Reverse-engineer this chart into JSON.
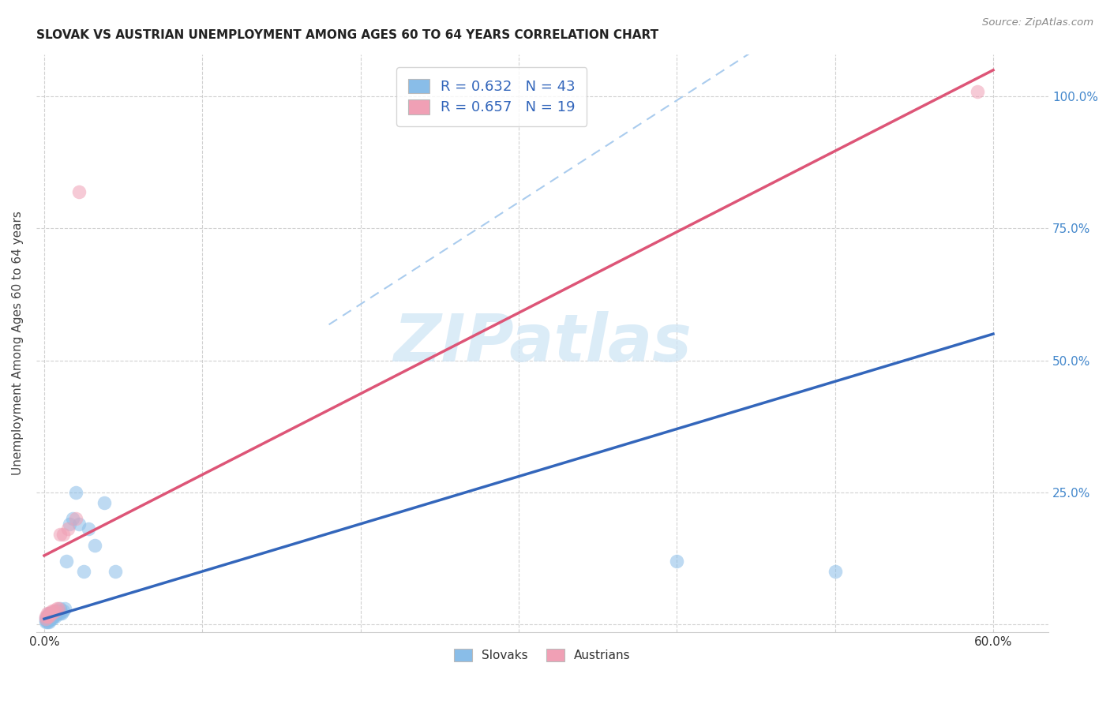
{
  "title": "SLOVAK VS AUSTRIAN UNEMPLOYMENT AMONG AGES 60 TO 64 YEARS CORRELATION CHART",
  "source": "Source: ZipAtlas.com",
  "ylabel": "Unemployment Among Ages 60 to 64 years",
  "x_tick_positions": [
    0.0,
    0.1,
    0.2,
    0.3,
    0.4,
    0.5,
    0.6
  ],
  "x_tick_labels": [
    "0.0%",
    "",
    "",
    "",
    "",
    "",
    "60.0%"
  ],
  "y_tick_positions": [
    0.0,
    0.25,
    0.5,
    0.75,
    1.0
  ],
  "y_tick_labels_right": [
    "",
    "25.0%",
    "50.0%",
    "75.0%",
    "100.0%"
  ],
  "xlim": [
    -0.005,
    0.635
  ],
  "ylim": [
    -0.015,
    1.08
  ],
  "legend_label1": "Slovaks",
  "legend_label2": "Austrians",
  "blue_scatter_color": "#89bde8",
  "pink_scatter_color": "#f0a0b5",
  "blue_line_color": "#3366bb",
  "pink_line_color": "#dd5577",
  "dash_line_color": "#aaccee",
  "watermark_text": "ZIPatlas",
  "watermark_color": "#cde4f5",
  "blue_line_x0": 0.0,
  "blue_line_y0": 0.01,
  "blue_line_x1": 0.6,
  "blue_line_y1": 0.55,
  "pink_line_x0": 0.0,
  "pink_line_y0": 0.13,
  "pink_line_x1": 0.6,
  "pink_line_y1": 1.05,
  "dash_line_x0": 0.18,
  "dash_line_y0": 0.22,
  "dash_line_x1": 0.62,
  "dash_line_y1": 1.07,
  "slovaks_x": [
    0.001,
    0.001,
    0.001,
    0.002,
    0.002,
    0.002,
    0.002,
    0.003,
    0.003,
    0.003,
    0.003,
    0.003,
    0.004,
    0.004,
    0.004,
    0.005,
    0.005,
    0.005,
    0.006,
    0.006,
    0.007,
    0.007,
    0.008,
    0.008,
    0.009,
    0.009,
    0.01,
    0.01,
    0.011,
    0.012,
    0.013,
    0.014,
    0.016,
    0.018,
    0.02,
    0.022,
    0.025,
    0.028,
    0.032,
    0.038,
    0.045,
    0.4,
    0.5
  ],
  "slovaks_y": [
    0.005,
    0.008,
    0.012,
    0.005,
    0.008,
    0.01,
    0.015,
    0.005,
    0.008,
    0.01,
    0.015,
    0.02,
    0.01,
    0.015,
    0.02,
    0.01,
    0.015,
    0.02,
    0.015,
    0.02,
    0.015,
    0.02,
    0.02,
    0.025,
    0.02,
    0.025,
    0.02,
    0.03,
    0.02,
    0.025,
    0.03,
    0.12,
    0.19,
    0.2,
    0.25,
    0.19,
    0.1,
    0.18,
    0.15,
    0.23,
    0.1,
    0.12,
    0.1
  ],
  "austrians_x": [
    0.001,
    0.001,
    0.002,
    0.002,
    0.003,
    0.003,
    0.004,
    0.005,
    0.005,
    0.006,
    0.007,
    0.008,
    0.009,
    0.01,
    0.012,
    0.015,
    0.02,
    0.022,
    0.59
  ],
  "austrians_y": [
    0.01,
    0.015,
    0.015,
    0.02,
    0.015,
    0.02,
    0.02,
    0.02,
    0.025,
    0.025,
    0.025,
    0.03,
    0.03,
    0.17,
    0.17,
    0.18,
    0.2,
    0.82,
    1.01
  ]
}
